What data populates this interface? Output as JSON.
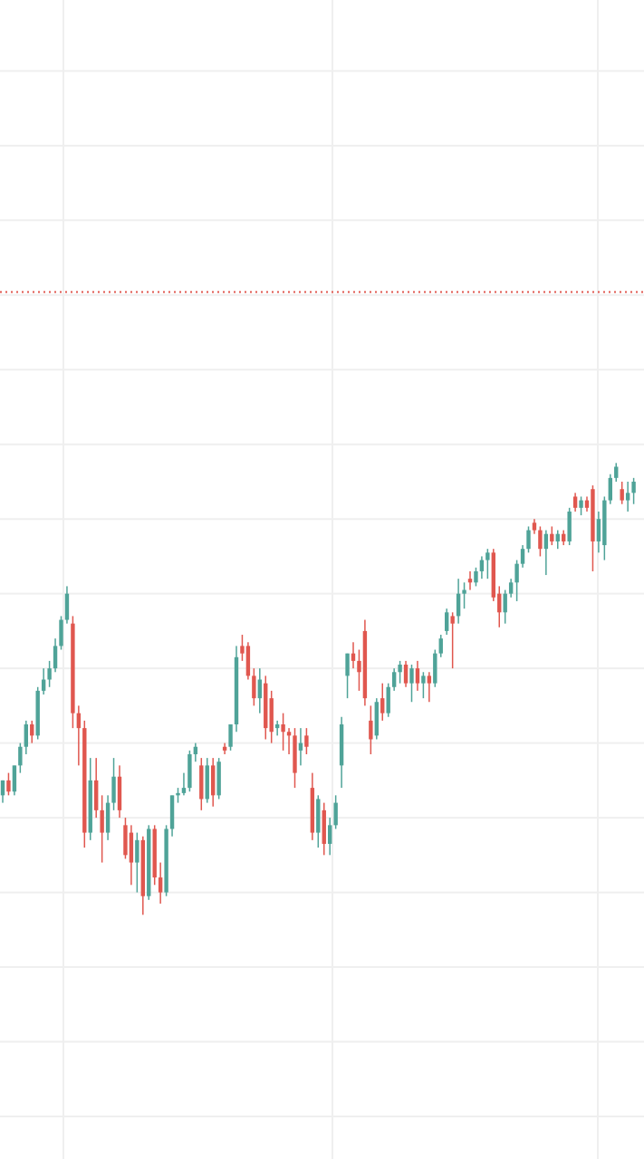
{
  "chart_data": {
    "type": "candlestick",
    "ylim": [
      4.3,
      159.5
    ],
    "yticks": [
      10,
      20,
      30,
      40,
      50,
      60,
      70,
      80,
      90,
      100,
      110,
      120,
      130,
      140,
      150
    ],
    "grid": true,
    "up_color": "#4fa398",
    "down_color": "#e0574f",
    "grid_color": "#efefef",
    "reference_line": {
      "value": 120.4,
      "color": "#e0574f"
    },
    "open": [
      53,
      55,
      53.5,
      57,
      59.5,
      62.5,
      61,
      67,
      68.5,
      70,
      73,
      76.5,
      76,
      64,
      62,
      48,
      55,
      51,
      48,
      52,
      55.5,
      49,
      48,
      44,
      47,
      39.5,
      48.5,
      42,
      40,
      48.5,
      53,
      53.3,
      54,
      58.5,
      57,
      52.5,
      57,
      53,
      59.5,
      59.5,
      62.5,
      73,
      73,
      69,
      66,
      68,
      66,
      62,
      62.5,
      61.5,
      61,
      59,
      61,
      54,
      48,
      51,
      46.5,
      49,
      57,
      69,
      72,
      71,
      75,
      63,
      61,
      66,
      64,
      67.5,
      69.5,
      70.5,
      68,
      70,
      68,
      69,
      68,
      72,
      75,
      77,
      77,
      80,
      82,
      81.5,
      83,
      84.5,
      85.5,
      80,
      77.5,
      80,
      81.5,
      84,
      86,
      89.5,
      88.5,
      86,
      88,
      87,
      88,
      87,
      93,
      91.5,
      92.5,
      94,
      87,
      86.5,
      92.5,
      95.5,
      94,
      92.5,
      93.5
    ],
    "high": [
      55,
      56,
      57,
      60,
      63,
      63,
      67.5,
      70,
      71,
      74,
      77,
      81,
      77,
      65,
      63,
      58,
      58,
      53,
      53,
      58,
      57,
      50,
      49,
      48,
      47.5,
      49,
      49,
      44,
      49,
      53,
      54,
      56,
      59,
      60,
      58,
      58,
      58,
      58,
      60,
      62.5,
      73,
      74.5,
      73.5,
      70,
      70,
      69,
      67,
      63,
      64,
      62,
      62,
      62,
      62,
      56,
      53,
      52,
      50,
      53,
      63.5,
      72,
      73.5,
      72.5,
      76.5,
      65,
      66,
      68,
      68,
      70,
      71,
      71,
      70.5,
      71,
      69.5,
      69.5,
      72.5,
      74.5,
      78,
      77.5,
      82,
      81.5,
      83,
      83.5,
      85,
      86,
      86,
      81,
      80.5,
      82,
      84.5,
      86.5,
      89,
      90,
      89,
      88.5,
      89,
      88.5,
      88.5,
      91.5,
      93.5,
      93,
      93,
      94.5,
      91,
      93,
      96,
      97.5,
      95,
      95,
      95.5
    ],
    "low": [
      52,
      53,
      53,
      56,
      58.5,
      60,
      60.5,
      66.5,
      67.5,
      69.5,
      72.5,
      76,
      62,
      57,
      46,
      47,
      50,
      44,
      47,
      51,
      50,
      44.5,
      41,
      40,
      37,
      39,
      41,
      38.5,
      39.5,
      47.5,
      52,
      53,
      53.5,
      57.5,
      51,
      52,
      51.5,
      52.5,
      58.5,
      59,
      61.5,
      71,
      68.5,
      65,
      64,
      60.5,
      60,
      61,
      59,
      58.5,
      54,
      57,
      58.5,
      47,
      46,
      45,
      45,
      48.5,
      54,
      66,
      70,
      67,
      65,
      58.5,
      60.5,
      63,
      63.5,
      67,
      68,
      67.5,
      65.5,
      67,
      66,
      65.5,
      67.5,
      71.5,
      74.5,
      70,
      76,
      78,
      80.5,
      81,
      82,
      82,
      79,
      75.5,
      76,
      79.5,
      79,
      83.5,
      85.5,
      88,
      85,
      82.5,
      86.5,
      86,
      86.5,
      86.5,
      91,
      90.5,
      91,
      83,
      85.5,
      84.5,
      92,
      95,
      92,
      91,
      92
    ],
    "close": [
      55,
      53.5,
      57,
      59.5,
      62.5,
      61,
      67,
      68.5,
      70,
      73,
      76.5,
      80,
      64,
      62,
      48,
      55,
      51,
      48,
      52,
      55.5,
      51,
      45,
      44,
      47,
      39.5,
      48.5,
      42,
      40,
      48.5,
      53,
      53.3,
      54,
      58.5,
      59.5,
      52.5,
      57,
      53,
      57.5,
      59,
      62.5,
      71.5,
      72,
      69,
      66,
      68.5,
      62,
      61.5,
      62.5,
      61.5,
      61,
      56,
      60,
      59.5,
      48,
      52.5,
      46.5,
      49,
      52,
      62.5,
      72,
      71,
      69.5,
      66,
      60.5,
      65.5,
      64,
      67.5,
      69.5,
      70.5,
      68,
      70,
      68,
      69,
      68,
      72,
      74,
      77.5,
      76,
      80,
      80.5,
      81.5,
      83,
      84.5,
      85.5,
      79.5,
      77.5,
      80,
      81.5,
      84,
      86,
      88.5,
      88.5,
      86,
      88,
      87,
      88,
      87,
      91,
      91.5,
      92.5,
      91.5,
      87,
      90,
      92.5,
      95.5,
      97,
      92.5,
      93.5,
      95
    ]
  }
}
